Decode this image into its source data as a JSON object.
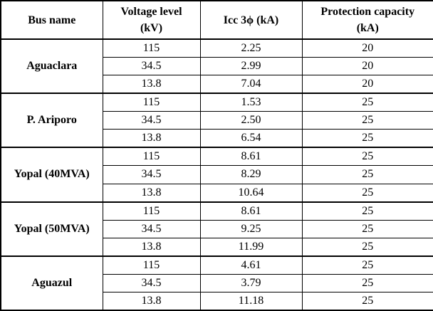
{
  "page": {
    "background_color": "#ffffff",
    "text_color": "#000000",
    "border_color": "#000000"
  },
  "table": {
    "headers": [
      {
        "line1": "Bus name",
        "line2": ""
      },
      {
        "line1": "Voltage level",
        "line2": "(kV)"
      },
      {
        "line1": "Icc 3ϕ (kA)",
        "line2": ""
      },
      {
        "line1": "Protection capacity",
        "line2": "(kA)"
      }
    ],
    "groups": [
      {
        "bus": "Aguaclara",
        "rows": [
          [
            "115",
            "2.25",
            "20"
          ],
          [
            "34.5",
            "2.99",
            "20"
          ],
          [
            "13.8",
            "7.04",
            "20"
          ]
        ]
      },
      {
        "bus": "P. Ariporo",
        "rows": [
          [
            "115",
            "1.53",
            "25"
          ],
          [
            "34.5",
            "2.50",
            "25"
          ],
          [
            "13.8",
            "6.54",
            "25"
          ]
        ]
      },
      {
        "bus": "Yopal (40MVA)",
        "rows": [
          [
            "115",
            "8.61",
            "25"
          ],
          [
            "34.5",
            "8.29",
            "25"
          ],
          [
            "13.8",
            "10.64",
            "25"
          ]
        ]
      },
      {
        "bus": "Yopal (50MVA)",
        "rows": [
          [
            "115",
            "8.61",
            "25"
          ],
          [
            "34.5",
            "9.25",
            "25"
          ],
          [
            "13.8",
            "11.99",
            "25"
          ]
        ]
      },
      {
        "bus": "Aguazul",
        "rows": [
          [
            "115",
            "4.61",
            "25"
          ],
          [
            "34.5",
            "3.79",
            "25"
          ],
          [
            "13.8",
            "11.18",
            "25"
          ]
        ]
      }
    ]
  }
}
